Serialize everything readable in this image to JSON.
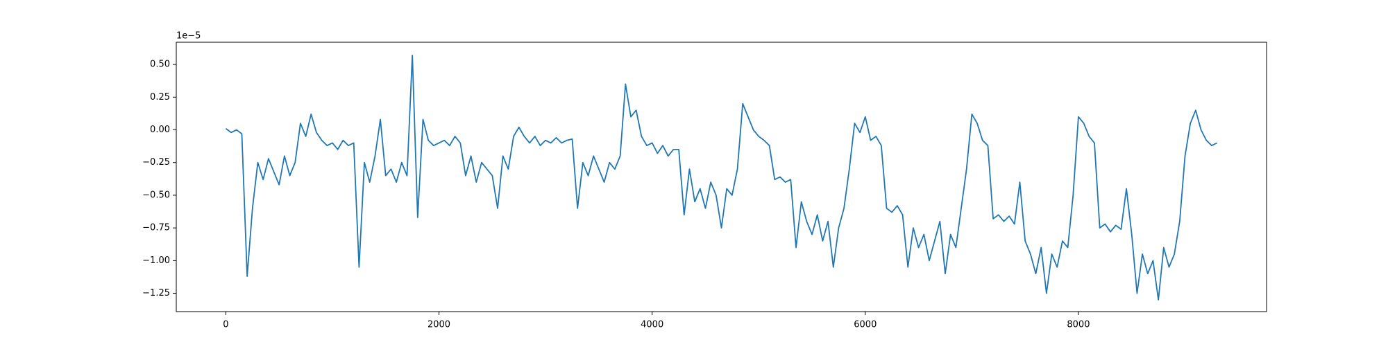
{
  "chart_data": {
    "type": "line",
    "color": "#1f77b4",
    "y_offset_label": "1e−5",
    "x": [
      0,
      50,
      100,
      150,
      200,
      250,
      300,
      350,
      400,
      450,
      500,
      550,
      600,
      650,
      700,
      750,
      800,
      850,
      900,
      950,
      1000,
      1050,
      1100,
      1150,
      1200,
      1250,
      1300,
      1350,
      1400,
      1450,
      1500,
      1550,
      1600,
      1650,
      1700,
      1750,
      1800,
      1850,
      1900,
      1950,
      2000,
      2050,
      2100,
      2150,
      2200,
      2250,
      2300,
      2350,
      2400,
      2450,
      2500,
      2550,
      2600,
      2650,
      2700,
      2750,
      2800,
      2850,
      2900,
      2950,
      3000,
      3050,
      3100,
      3150,
      3200,
      3250,
      3300,
      3350,
      3400,
      3450,
      3500,
      3550,
      3600,
      3650,
      3700,
      3750,
      3800,
      3850,
      3900,
      3950,
      4000,
      4050,
      4100,
      4150,
      4200,
      4250,
      4300,
      4350,
      4400,
      4450,
      4500,
      4550,
      4600,
      4650,
      4700,
      4750,
      4800,
      4850,
      4900,
      4950,
      5000,
      5050,
      5100,
      5150,
      5200,
      5250,
      5300,
      5350,
      5400,
      5450,
      5500,
      5550,
      5600,
      5650,
      5700,
      5750,
      5800,
      5850,
      5900,
      5950,
      6000,
      6050,
      6100,
      6150,
      6200,
      6250,
      6300,
      6350,
      6400,
      6450,
      6500,
      6550,
      6600,
      6650,
      6700,
      6750,
      6800,
      6850,
      6900,
      6950,
      7000,
      7050,
      7100,
      7150,
      7200,
      7250,
      7300,
      7350,
      7400,
      7450,
      7500,
      7550,
      7600,
      7650,
      7700,
      7750,
      7800,
      7850,
      7900,
      7950,
      8000,
      8050,
      8100,
      8150,
      8200,
      8250,
      8300,
      8350,
      8400,
      8450,
      8500,
      8550,
      8600,
      8650,
      8700,
      8750,
      8800,
      8850,
      8900,
      8950,
      9000,
      9050,
      9100,
      9150,
      9200,
      9250,
      9300
    ],
    "values": [
      0.01,
      -0.02,
      0.0,
      -0.03,
      -1.12,
      -0.6,
      -0.25,
      -0.38,
      -0.22,
      -0.32,
      -0.42,
      -0.2,
      -0.35,
      -0.25,
      0.05,
      -0.05,
      0.12,
      -0.02,
      -0.08,
      -0.12,
      -0.1,
      -0.15,
      -0.08,
      -0.12,
      -0.1,
      -1.05,
      -0.25,
      -0.4,
      -0.2,
      0.08,
      -0.35,
      -0.3,
      -0.4,
      -0.25,
      -0.35,
      0.57,
      -0.67,
      0.08,
      -0.08,
      -0.12,
      -0.1,
      -0.08,
      -0.12,
      -0.05,
      -0.1,
      -0.35,
      -0.2,
      -0.4,
      -0.25,
      -0.3,
      -0.35,
      -0.6,
      -0.2,
      -0.3,
      -0.05,
      0.02,
      -0.05,
      -0.1,
      -0.05,
      -0.12,
      -0.08,
      -0.1,
      -0.06,
      -0.1,
      -0.08,
      -0.07,
      -0.6,
      -0.25,
      -0.35,
      -0.2,
      -0.3,
      -0.4,
      -0.25,
      -0.3,
      -0.2,
      0.35,
      0.1,
      0.15,
      -0.05,
      -0.12,
      -0.1,
      -0.18,
      -0.12,
      -0.2,
      -0.15,
      -0.15,
      -0.65,
      -0.3,
      -0.55,
      -0.45,
      -0.6,
      -0.4,
      -0.5,
      -0.75,
      -0.45,
      -0.5,
      -0.3,
      0.2,
      0.1,
      0.0,
      -0.05,
      -0.08,
      -0.12,
      -0.38,
      -0.36,
      -0.4,
      -0.38,
      -0.9,
      -0.55,
      -0.7,
      -0.8,
      -0.65,
      -0.85,
      -0.7,
      -1.05,
      -0.75,
      -0.6,
      -0.3,
      0.05,
      -0.02,
      0.1,
      -0.08,
      -0.05,
      -0.12,
      -0.6,
      -0.63,
      -0.58,
      -0.65,
      -1.05,
      -0.75,
      -0.9,
      -0.8,
      -1.0,
      -0.85,
      -0.7,
      -1.1,
      -0.8,
      -0.9,
      -0.6,
      -0.3,
      0.12,
      0.05,
      -0.08,
      -0.12,
      -0.68,
      -0.65,
      -0.7,
      -0.66,
      -0.72,
      -0.4,
      -0.85,
      -0.95,
      -1.1,
      -0.9,
      -1.25,
      -0.95,
      -1.05,
      -0.85,
      -0.9,
      -0.5,
      0.1,
      0.05,
      -0.05,
      -0.1,
      -0.75,
      -0.72,
      -0.78,
      -0.73,
      -0.76,
      -0.45,
      -0.8,
      -1.25,
      -0.95,
      -1.1,
      -1.0,
      -1.3,
      -0.9,
      -1.05,
      -0.95,
      -0.7,
      -0.2,
      0.05,
      0.15,
      0.0,
      -0.08,
      -0.12,
      -0.1
    ],
    "xlim": [
      -465,
      9765
    ],
    "xticks": [
      0,
      2000,
      4000,
      6000,
      8000
    ],
    "ylim": [
      -1.39,
      0.67
    ],
    "yticks": [
      {
        "value": -1.25,
        "label": "−1.25"
      },
      {
        "value": -1.0,
        "label": "−1.00"
      },
      {
        "value": -0.75,
        "label": "−0.75"
      },
      {
        "value": -0.5,
        "label": "−0.50"
      },
      {
        "value": -0.25,
        "label": "−0.25"
      },
      {
        "value": 0,
        "label": "0.00"
      },
      {
        "value": 0.25,
        "label": "0.25"
      },
      {
        "value": 0.5,
        "label": "0.50"
      }
    ],
    "grid": false
  }
}
